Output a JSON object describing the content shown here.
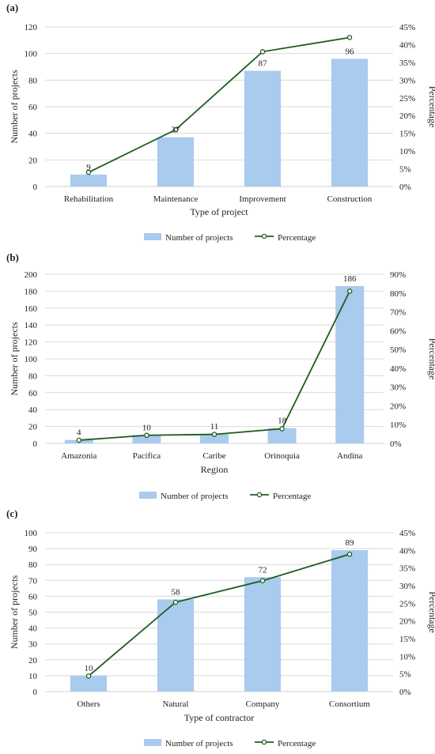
{
  "colors": {
    "bar": "#a9cbee",
    "line": "#1e5b1e",
    "marker_fill": "#ffffff",
    "grid": "#d9d9d9",
    "axis": "#d0d0d0",
    "text": "#222222"
  },
  "chart_data": [
    {
      "panel_label": "(a)",
      "type": "bar",
      "categories": [
        "Rehabilitation",
        "Maintenance",
        "Improvement",
        "Construction"
      ],
      "series": [
        {
          "name": "Number of projects",
          "type": "bar",
          "axis": "left",
          "values": [
            9,
            37,
            87,
            96
          ]
        },
        {
          "name": "Percentage",
          "type": "line",
          "axis": "right",
          "values": [
            4,
            16,
            38,
            42
          ]
        }
      ],
      "data_labels": [
        "9",
        "37",
        "87",
        "96"
      ],
      "xlabel": "Type of project",
      "ylabel": "Number of projects",
      "y2label": "Percentage",
      "ylim": [
        0,
        120
      ],
      "yticks": [
        "0",
        "20",
        "40",
        "60",
        "80",
        "100",
        "120"
      ],
      "y2lim": [
        0,
        45
      ],
      "y2ticks": [
        "0%",
        "5%",
        "10%",
        "15%",
        "20%",
        "25%",
        "30%",
        "35%",
        "40%",
        "45%"
      ],
      "legend": "bottom",
      "grid": true
    },
    {
      "panel_label": "(b)",
      "type": "bar",
      "categories": [
        "Amazonia",
        "Pacifica",
        "Caribe",
        "Orinoquia",
        "Andina"
      ],
      "series": [
        {
          "name": "Number of projects",
          "type": "bar",
          "axis": "left",
          "values": [
            4,
            10,
            11,
            18,
            186
          ]
        },
        {
          "name": "Percentage",
          "type": "line",
          "axis": "right",
          "values": [
            1.7,
            4.3,
            4.8,
            7.8,
            81
          ]
        }
      ],
      "data_labels": [
        "4",
        "10",
        "11",
        "18",
        "186"
      ],
      "xlabel": "Region",
      "ylabel": "Number of projects",
      "y2label": "Percentage",
      "ylim": [
        0,
        200
      ],
      "yticks": [
        "0",
        "20",
        "40",
        "60",
        "80",
        "100",
        "120",
        "140",
        "160",
        "180",
        "200"
      ],
      "y2lim": [
        0,
        90
      ],
      "y2ticks": [
        "0%",
        "10%",
        "20%",
        "30%",
        "40%",
        "50%",
        "60%",
        "70%",
        "80%",
        "90%"
      ],
      "legend": "bottom",
      "grid": true
    },
    {
      "panel_label": "(c)",
      "type": "bar",
      "categories": [
        "Others",
        "Natural",
        "Company",
        "Consortium"
      ],
      "series": [
        {
          "name": "Number of projects",
          "type": "bar",
          "axis": "left",
          "values": [
            10,
            58,
            72,
            89
          ]
        },
        {
          "name": "Percentage",
          "type": "line",
          "axis": "right",
          "values": [
            4.4,
            25.3,
            31.4,
            38.9
          ]
        }
      ],
      "data_labels": [
        "10",
        "58",
        "72",
        "89"
      ],
      "xlabel": "Type of contractor",
      "ylabel": "Number of projects",
      "y2label": "Percentage",
      "ylim": [
        0,
        100
      ],
      "yticks": [
        "0",
        "10",
        "20",
        "30",
        "40",
        "50",
        "60",
        "70",
        "80",
        "90",
        "100"
      ],
      "y2lim": [
        0,
        45
      ],
      "y2ticks": [
        "0%",
        "5%",
        "10%",
        "15%",
        "20%",
        "25%",
        "30%",
        "35%",
        "40%",
        "45%"
      ],
      "legend": "bottom",
      "grid": true
    }
  ]
}
